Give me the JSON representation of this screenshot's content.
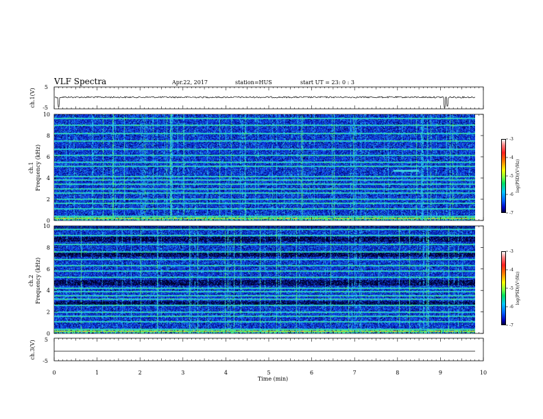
{
  "header": {
    "title": "VLF Spectra",
    "date": "Apr.22, 2017",
    "station": "station=HUS",
    "start": "start  UT =   23: 0  : 3"
  },
  "colors": {
    "background_dark": "#00003a",
    "background_blue": "#1030d0",
    "line_cyan": "#30c8e0",
    "emission_green": "#50f060",
    "trace": "#000000"
  },
  "chart_data": [
    {
      "type": "line",
      "panel": "ch1-waveform",
      "ylabel": "ch.1(V)",
      "yticks": [
        "5",
        "-5"
      ],
      "ylim": [
        -5,
        5
      ],
      "xlim": [
        0,
        10
      ],
      "description_values": {
        "baseline": 0,
        "spikes_near_min": [
          0.1,
          9.1
        ]
      }
    },
    {
      "type": "heatmap",
      "panel": "ch1-spectrogram",
      "ylabel": "ch.1\nFrequency (kHz)",
      "yticks": [
        "0",
        "2",
        "4",
        "6",
        "8",
        "10"
      ],
      "ylim": [
        0,
        10
      ],
      "xlim": [
        0,
        10
      ],
      "colorbar": {
        "label": "log(PSD)(V²/Hz)",
        "ticks": [
          "-3",
          "-4",
          "-5",
          "-6",
          "-7"
        ],
        "range": [
          -7,
          -3
        ]
      },
      "bands_khz": [
        0.4,
        1.1,
        1.6,
        2.0,
        2.6,
        3.0,
        3.4,
        3.8,
        4.1,
        5.1,
        5.5,
        6.1,
        6.7,
        7.5,
        8.2,
        9.0,
        9.6
      ],
      "emission": {
        "t_min": [
          7.9,
          8.5
        ],
        "f_khz": 4.65
      }
    },
    {
      "type": "heatmap",
      "panel": "ch2-spectrogram",
      "ylabel": "ch.2\nFrequency (kHz)",
      "yticks": [
        "0",
        "2",
        "4",
        "6",
        "8",
        "10"
      ],
      "ylim": [
        0,
        10
      ],
      "xlim": [
        0,
        10
      ],
      "colorbar": {
        "label": "log(PSD)(V²/Hz)",
        "ticks": [
          "-3",
          "-4",
          "-5",
          "-6",
          "-7"
        ],
        "range": [
          -7,
          -3
        ]
      },
      "bands_khz": [
        0.4,
        1.1,
        1.6,
        2.0,
        2.6,
        3.2,
        3.5,
        3.9,
        4.2,
        5.2,
        5.8,
        6.3,
        6.9,
        7.6,
        8.3,
        9.1,
        9.7
      ],
      "dark_bands_khz": [
        [
          4.5,
          5.0
        ],
        [
          7.2,
          7.6
        ],
        [
          8.6,
          9.0
        ],
        [
          2.6,
          3.0
        ]
      ]
    },
    {
      "type": "line",
      "panel": "ch3-waveform",
      "ylabel": "ch.3(V)",
      "yticks": [
        "5",
        "-5"
      ],
      "ylim": [
        -5,
        5
      ],
      "xlim": [
        0,
        10
      ],
      "description_values": {
        "baseline": 0
      }
    }
  ],
  "xaxis": {
    "label": "Time (min)",
    "ticks": [
      "0",
      "1",
      "2",
      "3",
      "4",
      "5",
      "6",
      "7",
      "8",
      "9",
      "10"
    ]
  }
}
